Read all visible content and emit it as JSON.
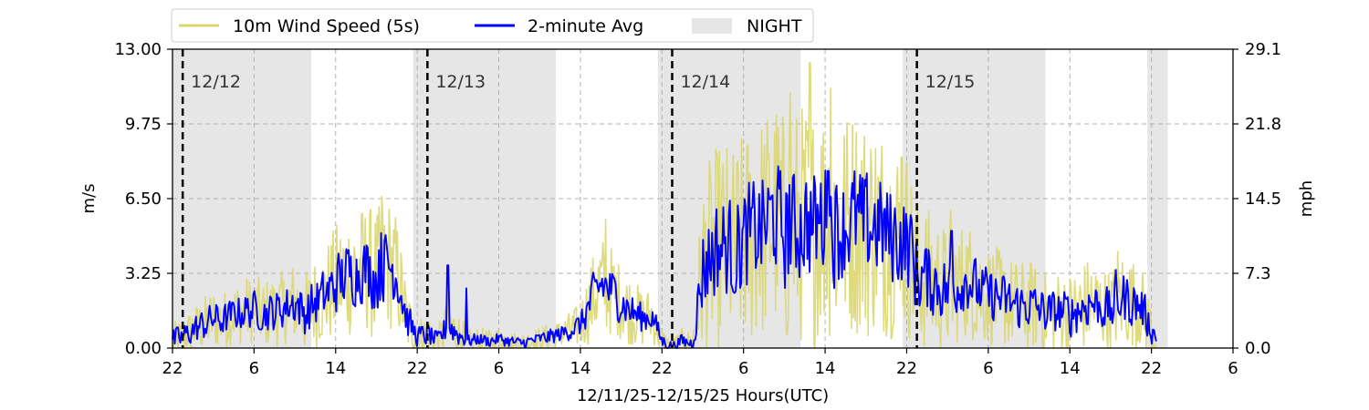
{
  "chart_data": {
    "type": "line",
    "xlabel": "12/11/25-12/15/25  Hours(UTC)",
    "ylabel": "m/s",
    "ylabel_right": "mph",
    "x_unit": "hours since 12/11/25 22:00 UTC",
    "xlim": [
      0,
      104
    ],
    "ylim": [
      0,
      13
    ],
    "x_ticks": [
      0,
      8,
      16,
      24,
      32,
      40,
      48,
      56,
      64,
      72,
      80,
      88,
      96,
      104
    ],
    "x_tick_labels": [
      "22",
      "6",
      "14",
      "22",
      "6",
      "14",
      "22",
      "6",
      "14",
      "22",
      "6",
      "14",
      "22",
      "6"
    ],
    "y_ticks": [
      0,
      3.25,
      6.5,
      9.75,
      13
    ],
    "y_tick_labels": [
      "0.00",
      "3.25",
      "6.50",
      "9.75",
      "13.00"
    ],
    "y_right_tick_labels": [
      "0.0",
      "7.3",
      "14.5",
      "21.8",
      "29.1"
    ],
    "grid": true,
    "legend_position": "top-left, above plot",
    "legend": [
      {
        "label": "10m Wind Speed (5s)",
        "kind": "line",
        "color": "#d9d76f"
      },
      {
        "label": "2-minute Avg",
        "kind": "line",
        "color": "#0000ff"
      },
      {
        "label": "NIGHT",
        "kind": "patch",
        "color": "#e6e6e6"
      }
    ],
    "night_intervals": [
      [
        0,
        13.6
      ],
      [
        23.6,
        37.6
      ],
      [
        47.6,
        61.6
      ],
      [
        71.6,
        85.6
      ],
      [
        95.6,
        97.6
      ]
    ],
    "day_markers": [
      {
        "x": 1,
        "label": "12/12"
      },
      {
        "x": 25,
        "label": "12/13"
      },
      {
        "x": 49,
        "label": "12/14"
      },
      {
        "x": 73,
        "label": "12/15"
      }
    ],
    "series": [
      {
        "name": "10m Wind Speed (5s)",
        "color": "#d9d76f",
        "x": [
          0,
          1,
          2,
          3,
          4,
          5,
          6,
          7,
          8,
          9,
          10,
          11,
          12,
          13,
          14,
          15,
          16,
          17,
          18,
          19,
          20,
          21,
          22,
          23,
          24,
          25,
          26,
          27,
          28,
          29,
          30,
          31,
          32,
          33,
          34,
          35,
          36,
          37,
          38,
          39,
          40,
          41,
          42,
          43,
          44,
          45,
          46,
          47,
          48,
          49,
          50,
          51,
          52,
          53,
          54,
          55,
          56,
          57,
          58,
          59,
          60,
          61,
          62,
          63,
          64,
          65,
          66,
          67,
          68,
          69,
          70,
          71,
          72,
          73,
          74,
          75,
          76,
          77,
          78,
          79,
          80,
          81,
          82,
          83,
          84,
          85,
          86,
          87,
          88,
          89,
          90,
          91,
          92,
          93,
          94,
          95,
          96,
          96.5
        ],
        "mean": [
          0.3,
          0.5,
          0.8,
          1.0,
          1.3,
          1.2,
          1.5,
          1.6,
          1.7,
          1.5,
          1.6,
          1.8,
          2.0,
          1.5,
          2.0,
          2.3,
          2.8,
          3.2,
          3.3,
          3.5,
          3.0,
          3.8,
          3.2,
          1.2,
          0.5,
          0.6,
          0.3,
          1.0,
          0.6,
          0.3,
          0.4,
          0.3,
          0.4,
          0.3,
          0.2,
          0.3,
          0.4,
          0.5,
          0.6,
          0.8,
          1.0,
          2.0,
          2.8,
          2.5,
          2.0,
          1.6,
          1.3,
          1.4,
          0.3,
          0.1,
          0.3,
          0.2,
          3.5,
          4.2,
          4.5,
          4.2,
          4.6,
          5.0,
          5.3,
          5.8,
          5.0,
          5.2,
          5.5,
          5.3,
          5.8,
          5.2,
          5.4,
          5.6,
          5.2,
          5.4,
          5.0,
          4.8,
          4.6,
          3.2,
          3.0,
          2.8,
          2.5,
          2.8,
          3.0,
          2.5,
          2.3,
          2.2,
          2.0,
          1.8,
          1.9,
          1.7,
          1.5,
          1.6,
          1.5,
          1.7,
          2.0,
          1.8,
          1.6,
          2.2,
          2.0,
          1.8,
          0.8,
          0.4
        ],
        "range": [
          0.8,
          0.8,
          1.0,
          1.2,
          1.3,
          1.3,
          1.3,
          1.5,
          1.5,
          1.5,
          1.6,
          1.6,
          1.8,
          1.8,
          2.0,
          2.2,
          2.6,
          2.8,
          2.8,
          2.8,
          3.0,
          3.0,
          2.6,
          1.5,
          0.8,
          0.9,
          0.6,
          1.3,
          1.0,
          0.5,
          0.5,
          0.5,
          0.5,
          0.5,
          0.4,
          0.5,
          0.5,
          0.6,
          0.6,
          0.8,
          1.0,
          1.8,
          2.2,
          2.0,
          1.6,
          1.5,
          1.3,
          1.2,
          0.6,
          0.3,
          0.6,
          0.5,
          4.0,
          4.4,
          4.6,
          4.6,
          4.8,
          5.0,
          5.0,
          5.3,
          5.3,
          5.3,
          5.3,
          5.3,
          5.3,
          5.2,
          5.0,
          5.0,
          5.0,
          4.8,
          4.6,
          4.4,
          4.2,
          3.4,
          3.2,
          3.0,
          2.8,
          2.6,
          2.6,
          2.4,
          2.2,
          2.2,
          2.0,
          2.0,
          2.0,
          1.8,
          1.8,
          1.8,
          1.8,
          2.0,
          2.0,
          1.8,
          1.8,
          2.2,
          2.0,
          1.8,
          1.2,
          0.8
        ],
        "peaks": [
          {
            "x": 20.5,
            "y": 6.6
          },
          {
            "x": 42.5,
            "y": 5.6
          },
          {
            "x": 60.6,
            "y": 11.1
          },
          {
            "x": 62.5,
            "y": 12.4
          },
          {
            "x": 64.5,
            "y": 11.3
          },
          {
            "x": 71.5,
            "y": 8.3
          },
          {
            "x": 76.3,
            "y": 6.0
          },
          {
            "x": 92.7,
            "y": 4.2
          }
        ]
      },
      {
        "name": "2-minute Avg",
        "color": "#0000ff",
        "x": [
          0,
          1,
          2,
          3,
          4,
          5,
          6,
          7,
          8,
          9,
          10,
          11,
          12,
          13,
          14,
          15,
          16,
          17,
          18,
          19,
          20,
          21,
          22,
          23,
          24,
          25,
          26,
          27,
          28,
          29,
          30,
          31,
          32,
          33,
          34,
          35,
          36,
          37,
          38,
          39,
          40,
          41,
          42,
          43,
          44,
          45,
          46,
          47,
          48,
          49,
          50,
          51,
          52,
          53,
          54,
          55,
          56,
          57,
          58,
          59,
          60,
          61,
          62,
          63,
          64,
          65,
          66,
          67,
          68,
          69,
          70,
          71,
          72,
          73,
          74,
          75,
          76,
          77,
          78,
          79,
          80,
          81,
          82,
          83,
          84,
          85,
          86,
          87,
          88,
          89,
          90,
          91,
          92,
          93,
          94,
          95,
          96,
          96.5
        ],
        "mean": [
          0.3,
          0.5,
          0.8,
          1.0,
          1.3,
          1.2,
          1.5,
          1.6,
          1.7,
          1.5,
          1.6,
          1.8,
          2.0,
          1.5,
          2.0,
          2.3,
          2.8,
          3.2,
          3.3,
          3.5,
          3.0,
          3.8,
          3.2,
          1.2,
          0.5,
          0.6,
          0.3,
          1.0,
          0.6,
          0.3,
          0.4,
          0.3,
          0.4,
          0.3,
          0.2,
          0.3,
          0.4,
          0.5,
          0.6,
          0.8,
          1.0,
          2.0,
          2.8,
          2.5,
          2.0,
          1.6,
          1.3,
          1.4,
          0.3,
          0.1,
          0.3,
          0.2,
          3.5,
          4.2,
          4.5,
          4.2,
          4.6,
          5.0,
          5.3,
          5.8,
          5.0,
          5.2,
          5.5,
          5.3,
          5.8,
          5.2,
          5.4,
          5.6,
          5.2,
          5.4,
          5.0,
          4.8,
          4.6,
          3.2,
          3.0,
          2.8,
          2.5,
          2.8,
          3.0,
          2.5,
          2.3,
          2.2,
          2.0,
          1.8,
          1.9,
          1.7,
          1.5,
          1.6,
          1.5,
          1.7,
          2.0,
          1.8,
          1.6,
          2.2,
          2.0,
          1.8,
          0.8,
          0.4
        ],
        "range": [
          0.6,
          0.6,
          0.7,
          0.8,
          0.8,
          0.8,
          0.8,
          0.9,
          0.9,
          0.9,
          1.0,
          1.0,
          1.1,
          1.1,
          1.2,
          1.3,
          1.5,
          1.6,
          1.6,
          1.6,
          1.7,
          1.7,
          1.5,
          0.9,
          0.5,
          0.6,
          0.4,
          0.8,
          0.6,
          0.3,
          0.3,
          0.3,
          0.3,
          0.3,
          0.3,
          0.3,
          0.3,
          0.4,
          0.4,
          0.5,
          0.6,
          1.1,
          1.3,
          1.2,
          1.0,
          0.9,
          0.8,
          0.7,
          0.4,
          0.2,
          0.4,
          0.3,
          2.2,
          2.4,
          2.5,
          2.5,
          2.6,
          2.7,
          2.7,
          2.8,
          2.8,
          2.8,
          2.8,
          2.8,
          2.8,
          2.8,
          2.7,
          2.7,
          2.7,
          2.6,
          2.5,
          2.4,
          2.3,
          1.9,
          1.8,
          1.7,
          1.6,
          1.5,
          1.5,
          1.4,
          1.3,
          1.3,
          1.2,
          1.2,
          1.2,
          1.1,
          1.1,
          1.1,
          1.1,
          1.2,
          1.2,
          1.1,
          1.1,
          1.3,
          1.2,
          1.1,
          0.7,
          0.5
        ],
        "peaks": [
          {
            "x": 20.5,
            "y": 5.0
          },
          {
            "x": 27.0,
            "y": 3.6
          },
          {
            "x": 28.8,
            "y": 2.6
          },
          {
            "x": 60.5,
            "y": 7.1
          },
          {
            "x": 64.3,
            "y": 7.7
          },
          {
            "x": 72.5,
            "y": 5.6
          },
          {
            "x": 76.4,
            "y": 5.1
          },
          {
            "x": 92.5,
            "y": 3.4
          }
        ]
      }
    ]
  }
}
